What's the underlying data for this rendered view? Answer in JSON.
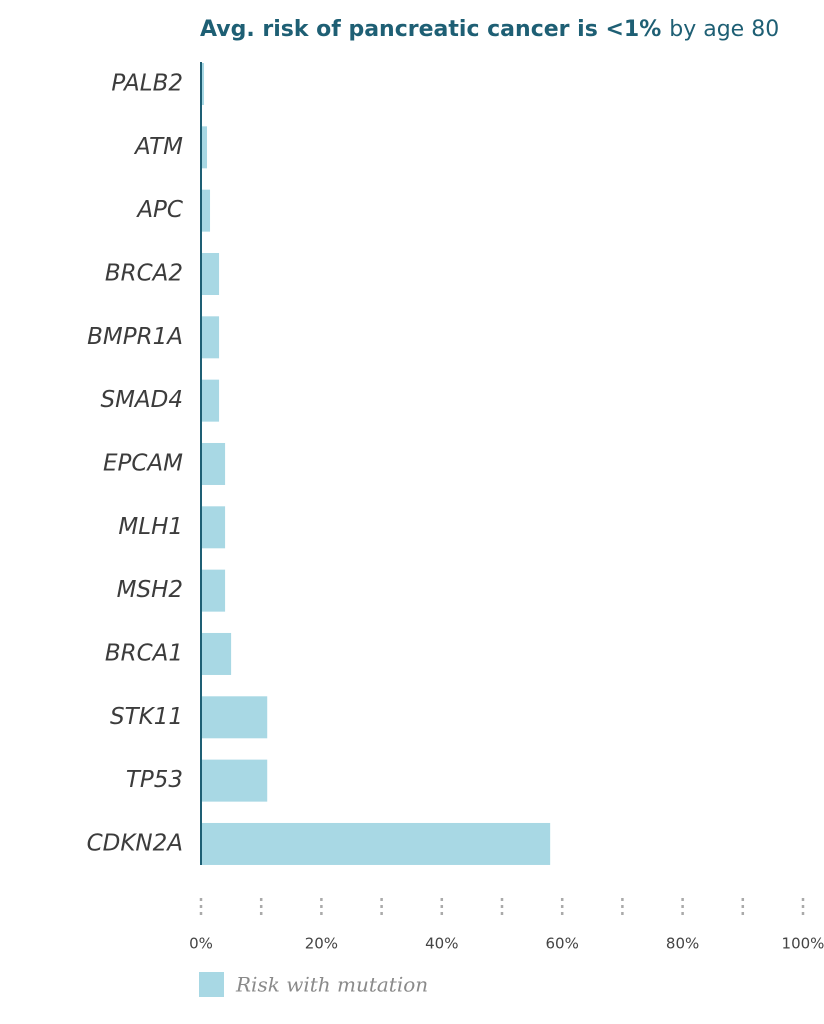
{
  "chart_data": {
    "type": "barh",
    "title": [
      "Avg. risk of pancreatic cancer is <1%",
      "by age 80"
    ],
    "categories": [
      "PALB2",
      "ATM",
      "APC",
      "BRCA2",
      "BMPR1A",
      "SMAD4",
      "EPCAM",
      "MLH1",
      "MSH2",
      "BRCA1",
      "STK11",
      "TP53",
      "CDKN2A"
    ],
    "series": [
      {
        "name": "Risk with mutation",
        "color": "#a8d8e4",
        "values": [
          0.5,
          1,
          1.5,
          3,
          3,
          3,
          4,
          4,
          4,
          5,
          11,
          11,
          58
        ]
      }
    ],
    "xlim": [
      0,
      100
    ],
    "xticks": [
      {
        "value": 0,
        "label": "0%"
      },
      {
        "value": 20,
        "label": "20%"
      },
      {
        "value": 40,
        "label": "40%"
      },
      {
        "value": 60,
        "label": "60%"
      },
      {
        "value": 80,
        "label": "80%"
      },
      {
        "value": 100,
        "label": "100%"
      }
    ],
    "minor_xticks": [
      10,
      30,
      50,
      70,
      90
    ],
    "axis_color": "#1e5f74"
  }
}
